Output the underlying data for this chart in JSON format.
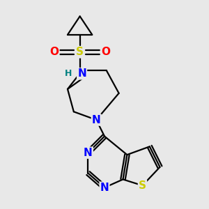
{
  "background_color": "#e8e8e8",
  "bond_color": "#000000",
  "atom_colors": {
    "N": "#0000ff",
    "S_sulfonamide": "#cccc00",
    "S_thio": "#cccc00",
    "O": "#ff0000",
    "H": "#008080",
    "C": "#000000"
  },
  "figsize": [
    3.0,
    3.0
  ],
  "dpi": 100
}
